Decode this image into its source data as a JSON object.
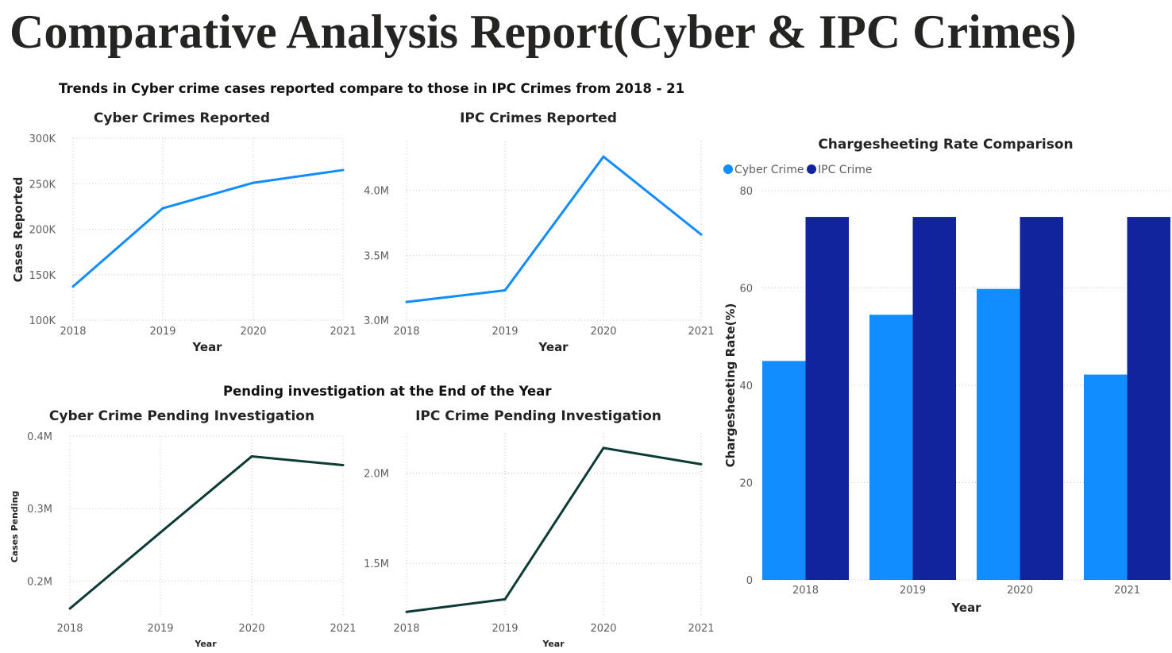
{
  "report": {
    "title": "Comparative Analysis Report(Cyber & IPC Crimes)",
    "section_trends": "Trends in Cyber crime cases reported compare to those in IPC Crimes from 2018 - 21",
    "section_pending": "Pending investigation at the End of the Year"
  },
  "colors": {
    "light_blue": "#118dff",
    "dark_blue": "#12239e",
    "line_blue": "#118dff",
    "line_dark": "#0e3b36"
  },
  "chart_data": [
    {
      "id": "cyber-reported",
      "type": "line",
      "title": "Cyber Crimes Reported",
      "xlabel": "Year",
      "ylabel": "Cases Reported",
      "x": [
        "2018",
        "2019",
        "2020",
        "2021"
      ],
      "series": [
        {
          "name": "Cyber Crimes Reported",
          "values": [
            137000,
            223000,
            251000,
            265000
          ]
        }
      ],
      "ylim": [
        100000,
        300000
      ],
      "yticks": [
        {
          "v": 100000,
          "label": "100K"
        },
        {
          "v": 150000,
          "label": "150K"
        },
        {
          "v": 200000,
          "label": "200K"
        },
        {
          "v": 250000,
          "label": "250K"
        },
        {
          "v": 300000,
          "label": "300K"
        }
      ]
    },
    {
      "id": "ipc-reported",
      "type": "line",
      "title": "IPC Crimes Reported",
      "xlabel": "Year",
      "ylabel": "",
      "x": [
        "2018",
        "2019",
        "2020",
        "2021"
      ],
      "series": [
        {
          "name": "IPC Crimes Reported",
          "values": [
            3140000,
            3230000,
            4260000,
            3660000
          ]
        }
      ],
      "ylim": [
        3000000,
        4500000
      ],
      "yticks": [
        {
          "v": 3000000,
          "label": "3.0M"
        },
        {
          "v": 3500000,
          "label": "3.5M"
        },
        {
          "v": 4000000,
          "label": "4.0M"
        }
      ]
    },
    {
      "id": "cyber-pending",
      "type": "line",
      "title": "Cyber Crime Pending Investigation",
      "xlabel": "Year",
      "ylabel": "Cases Pending",
      "x": [
        "2018",
        "2019",
        "2020",
        "2021"
      ],
      "series": [
        {
          "name": "Cyber Crime Pending Investigation",
          "values": [
            162000,
            267000,
            372000,
            360000
          ]
        }
      ],
      "ylim": [
        150000,
        400000
      ],
      "yticks": [
        {
          "v": 200000,
          "label": "0.2M"
        },
        {
          "v": 300000,
          "label": "0.3M"
        },
        {
          "v": 400000,
          "label": "0.4M"
        }
      ]
    },
    {
      "id": "ipc-pending",
      "type": "line",
      "title": "IPC Crime Pending Investigation",
      "xlabel": "Year",
      "ylabel": "",
      "x": [
        "2018",
        "2019",
        "2020",
        "2021"
      ],
      "series": [
        {
          "name": "IPC Crime Pending Investigation",
          "values": [
            1230000,
            1300000,
            2140000,
            2050000
          ]
        }
      ],
      "ylim": [
        1200000,
        2250000
      ],
      "yticks": [
        {
          "v": 1500000,
          "label": "1.5M"
        },
        {
          "v": 2000000,
          "label": "2.0M"
        }
      ]
    },
    {
      "id": "chargesheet-rate",
      "type": "bar",
      "title": "Chargesheeting Rate Comparison",
      "xlabel": "Year",
      "ylabel": "Chargesheeting Rate(%)",
      "categories": [
        "2018",
        "2019",
        "2020",
        "2021"
      ],
      "series": [
        {
          "name": "Cyber Crime",
          "values": [
            45,
            54.5,
            59.8,
            42.2
          ]
        },
        {
          "name": "IPC Crime",
          "values": [
            74.6,
            74.6,
            74.6,
            74.6
          ]
        }
      ],
      "ylim": [
        0,
        80
      ],
      "yticks": [
        {
          "v": 0,
          "label": "0"
        },
        {
          "v": 20,
          "label": "20"
        },
        {
          "v": 40,
          "label": "40"
        },
        {
          "v": 60,
          "label": "60"
        },
        {
          "v": 80,
          "label": "80"
        }
      ],
      "legend": "top-left"
    }
  ]
}
